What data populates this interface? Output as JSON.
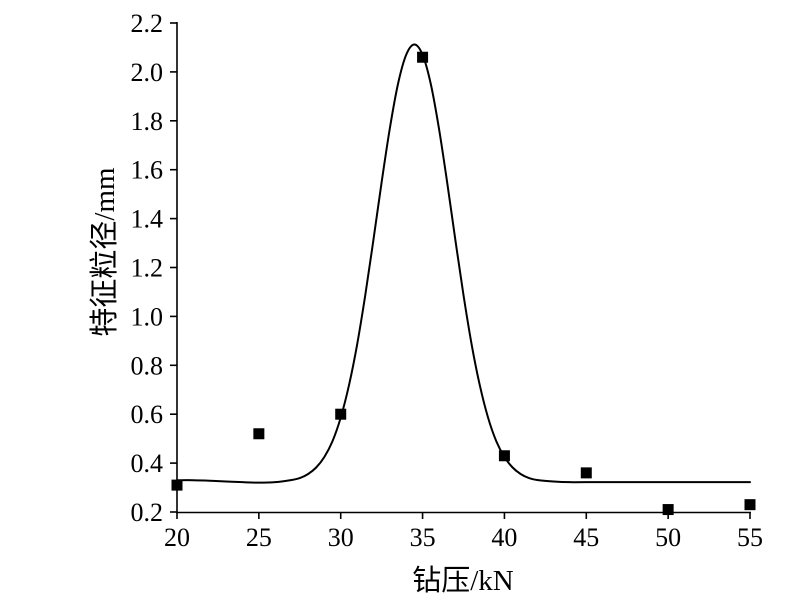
{
  "chart_data": {
    "type": "scatter",
    "xlabel": "钻压/kN",
    "ylabel": "特征粒径/mm",
    "xlim": [
      20,
      55
    ],
    "ylim": [
      0.2,
      2.2
    ],
    "x_ticks": [
      "20",
      "25",
      "30",
      "35",
      "40",
      "45",
      "50",
      "55"
    ],
    "y_ticks": [
      "0.2",
      "0.4",
      "0.6",
      "0.8",
      "1.0",
      "1.2",
      "1.4",
      "1.6",
      "1.8",
      "2.0",
      "2.2"
    ],
    "grid": false,
    "series": [
      {
        "type": "scatter",
        "marker": "square",
        "color": "#000000",
        "x": [
          20,
          25,
          30,
          35,
          40,
          45,
          50,
          55
        ],
        "y": [
          0.31,
          0.52,
          0.6,
          2.06,
          0.43,
          0.36,
          0.21,
          0.23
        ]
      },
      {
        "type": "line",
        "color": "#000000",
        "x": [
          20,
          21,
          22,
          23,
          24,
          25,
          26,
          27,
          27.5,
          28,
          28.5,
          29,
          29.5,
          30,
          30.5,
          31,
          31.5,
          32,
          32.5,
          33,
          33.5,
          34,
          34.5,
          35,
          35.5,
          36,
          36.5,
          37,
          37.5,
          38,
          38.5,
          39,
          39.5,
          40,
          40.5,
          41,
          41.5,
          42,
          43,
          44,
          45,
          50,
          55
        ],
        "y": [
          0.33,
          0.33,
          0.328,
          0.325,
          0.322,
          0.32,
          0.322,
          0.331,
          0.339,
          0.355,
          0.382,
          0.425,
          0.49,
          0.586,
          0.717,
          0.884,
          1.087,
          1.314,
          1.549,
          1.769,
          1.951,
          2.07,
          2.112,
          2.07,
          1.951,
          1.769,
          1.549,
          1.314,
          1.087,
          0.884,
          0.717,
          0.586,
          0.49,
          0.425,
          0.382,
          0.355,
          0.339,
          0.331,
          0.325,
          0.322,
          0.322,
          0.322,
          0.322
        ]
      }
    ]
  }
}
